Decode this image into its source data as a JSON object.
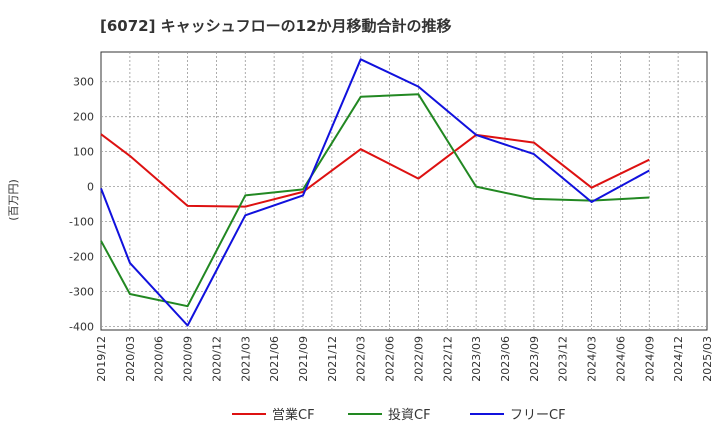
{
  "chart_data": {
    "type": "line",
    "title": "[6072]  キャッシュフローの12か月移動合計の推移",
    "ylabel": "(百万円)",
    "xlabel": "",
    "ylim": [
      -410,
      385
    ],
    "yticks": [
      300,
      200,
      100,
      0,
      -100,
      -200,
      -300,
      -400
    ],
    "categories": [
      "2019/12",
      "2020/03",
      "2020/06",
      "2020/09",
      "2020/12",
      "2021/03",
      "2021/06",
      "2021/09",
      "2021/12",
      "2022/03",
      "2022/06",
      "2022/09",
      "2022/12",
      "2023/03",
      "2023/06",
      "2023/09",
      "2023/12",
      "2024/03",
      "2024/06",
      "2024/09",
      "2024/12",
      "2025/03"
    ],
    "grid": true,
    "legend_position": "bottom",
    "series": [
      {
        "name": "営業CF",
        "color": "#dd1111",
        "values": [
          150,
          88,
          null,
          -55,
          null,
          -57,
          null,
          -15,
          null,
          107,
          null,
          23,
          null,
          148,
          null,
          126,
          null,
          -3,
          null,
          77,
          null,
          null
        ]
      },
      {
        "name": "投資CF",
        "color": "#228822",
        "values": [
          -155,
          -307,
          null,
          -342,
          null,
          -25,
          null,
          -8,
          null,
          257,
          null,
          264,
          null,
          0,
          null,
          -35,
          null,
          -40,
          null,
          -31,
          null,
          null
        ]
      },
      {
        "name": "フリーCF",
        "color": "#1111dd",
        "values": [
          -5,
          -218,
          null,
          -397,
          null,
          -82,
          null,
          -25,
          null,
          364,
          null,
          286,
          null,
          148,
          null,
          93,
          null,
          -44,
          null,
          46,
          null,
          null
        ]
      }
    ]
  }
}
